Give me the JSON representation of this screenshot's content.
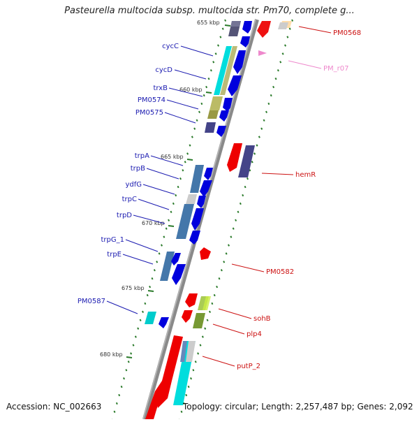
{
  "title": "Pasteurella multocida subsp. multocida str. Pm70, complete g...",
  "footer": {
    "accession": "Accession: NC_002663",
    "summary": "Topology: circular; Length: 2,257,487 bp; Genes: 2,092"
  },
  "ticks": [
    "655 kbp",
    "660 kbp",
    "665 kbp",
    "670 kbp",
    "675 kbp",
    "680 kbp"
  ],
  "left_labels": [
    "cycC",
    "cycD",
    "trxB",
    "PM0574",
    "PM0575",
    "trpA",
    "trpB",
    "ydfG",
    "trpC",
    "trpD",
    "trpG_1",
    "trpE",
    "PM0587"
  ],
  "right_labels": [
    "PM0568",
    "PM_r07",
    "hemR",
    "PM0582",
    "sohB",
    "plp4",
    "putP_2"
  ],
  "colors": {
    "left_label": "#1a1ab0",
    "right_label": "#cc1111",
    "rna_label": "#ee88cc",
    "backbone": "#888888",
    "tick": "#2a7a2a"
  }
}
